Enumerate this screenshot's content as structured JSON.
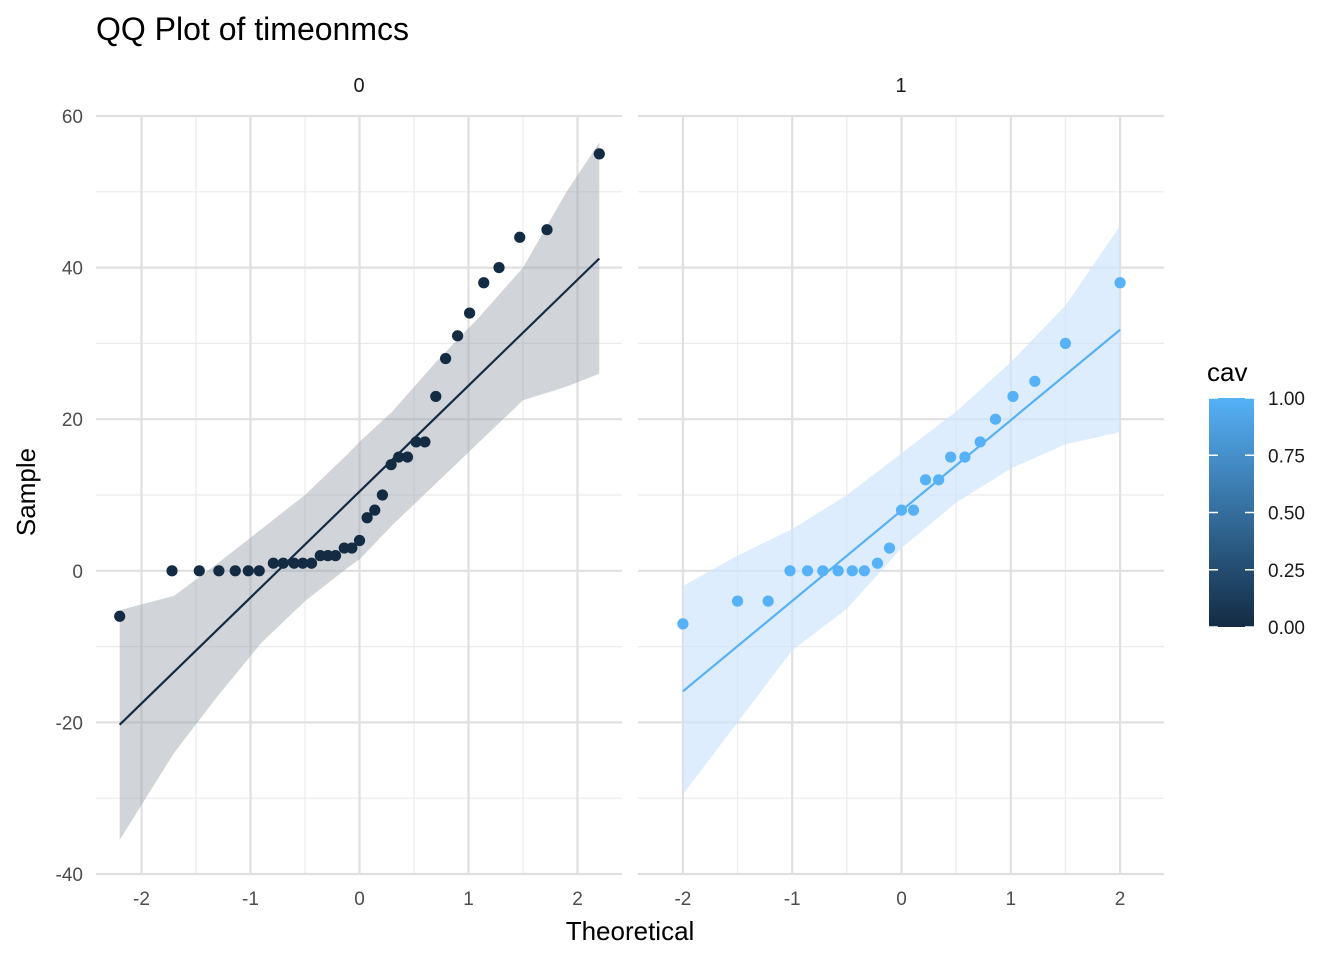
{
  "chart_data": {
    "type": "scatter",
    "title": "QQ Plot of timeonmcs",
    "xlabel": "Theoretical",
    "ylabel": "Sample",
    "ylim": [
      -40,
      60
    ],
    "y_ticks": [
      "-40",
      "-20",
      "0",
      "20",
      "40",
      "60"
    ],
    "grid": true,
    "legend": {
      "title": "cav",
      "position": "right",
      "type": "colorbar",
      "ticks": [
        "0.00",
        "0.25",
        "0.50",
        "0.75",
        "1.00"
      ],
      "color_low": "#132B43",
      "color_high": "#56B1F7"
    },
    "panels": [
      {
        "label": "0",
        "color": "#132B43",
        "band_color": "#9aa0a8",
        "xlim": [
          -2.2,
          2.2
        ],
        "x_ticks": [
          "-2",
          "-1",
          "0",
          "1",
          "2"
        ],
        "points": [
          [
            -2.2,
            -6
          ],
          [
            -1.72,
            0
          ],
          [
            -1.47,
            0
          ],
          [
            -1.29,
            0
          ],
          [
            -1.14,
            0
          ],
          [
            -1.02,
            0
          ],
          [
            -0.92,
            0
          ],
          [
            -0.79,
            1
          ],
          [
            -0.7,
            1
          ],
          [
            -0.6,
            1
          ],
          [
            -0.52,
            1
          ],
          [
            -0.44,
            1
          ],
          [
            -0.36,
            2
          ],
          [
            -0.29,
            2
          ],
          [
            -0.22,
            2
          ],
          [
            -0.14,
            3
          ],
          [
            -0.07,
            3
          ],
          [
            0.0,
            4
          ],
          [
            0.07,
            7
          ],
          [
            0.14,
            8
          ],
          [
            0.21,
            10
          ],
          [
            0.29,
            14
          ],
          [
            0.36,
            15
          ],
          [
            0.44,
            15
          ],
          [
            0.52,
            17
          ],
          [
            0.6,
            17
          ],
          [
            0.7,
            23
          ],
          [
            0.79,
            28
          ],
          [
            0.9,
            31
          ],
          [
            1.01,
            34
          ],
          [
            1.14,
            38
          ],
          [
            1.28,
            40
          ],
          [
            1.47,
            44
          ],
          [
            1.72,
            45
          ],
          [
            2.2,
            55
          ]
        ],
        "line": [
          [
            -2.2,
            -20.3
          ],
          [
            2.2,
            41.2
          ]
        ],
        "band": {
          "x": [
            -2.2,
            -1.7,
            -1.3,
            -0.9,
            -0.5,
            -0.1,
            0.0,
            0.3,
            0.7,
            1.1,
            1.5,
            1.9,
            2.2
          ],
          "upper": [
            -5.2,
            -3.3,
            1.0,
            5.5,
            10.0,
            15.5,
            17.0,
            21.0,
            27.5,
            33.5,
            40.0,
            50.0,
            56.5
          ],
          "lower": [
            -35.5,
            -24.0,
            -16.5,
            -9.5,
            -4.0,
            0.5,
            1.5,
            6.0,
            11.5,
            17.0,
            22.5,
            24.3,
            26.0
          ]
        }
      },
      {
        "label": "1",
        "color": "#56B1F7",
        "band_color": "#cfe6fd",
        "xlim": [
          -2.0,
          2.0
        ],
        "x_ticks": [
          "-2",
          "-1",
          "0",
          "1",
          "2"
        ],
        "points": [
          [
            -2.0,
            -7
          ],
          [
            -1.5,
            -4
          ],
          [
            -1.22,
            -4
          ],
          [
            -1.02,
            0
          ],
          [
            -0.86,
            0
          ],
          [
            -0.72,
            0
          ],
          [
            -0.58,
            0
          ],
          [
            -0.45,
            0
          ],
          [
            -0.34,
            0
          ],
          [
            -0.22,
            1
          ],
          [
            -0.11,
            3
          ],
          [
            0.0,
            8
          ],
          [
            0.11,
            8
          ],
          [
            0.22,
            12
          ],
          [
            0.34,
            12
          ],
          [
            0.45,
            15
          ],
          [
            0.58,
            15
          ],
          [
            0.72,
            17
          ],
          [
            0.86,
            20
          ],
          [
            1.02,
            23
          ],
          [
            1.22,
            25
          ],
          [
            1.5,
            30
          ],
          [
            2.0,
            38
          ]
        ],
        "line": [
          [
            -2.0,
            -15.9
          ],
          [
            2.0,
            31.8
          ]
        ],
        "band": {
          "x": [
            -2.0,
            -1.5,
            -1.0,
            -0.5,
            0.0,
            0.5,
            1.0,
            1.5,
            2.0
          ],
          "upper": [
            -2.0,
            2.0,
            5.5,
            10.0,
            15.5,
            21.0,
            27.5,
            35.0,
            45.5
          ],
          "lower": [
            -29.5,
            -20.0,
            -10.5,
            -5.0,
            3.0,
            9.0,
            13.5,
            16.7,
            18.3
          ]
        }
      }
    ]
  }
}
